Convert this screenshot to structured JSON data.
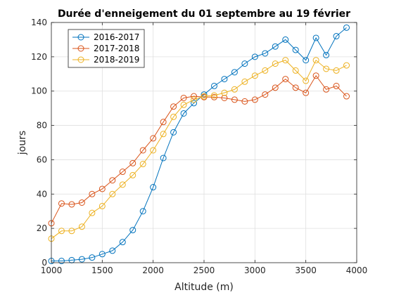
{
  "chart_data": {
    "type": "line",
    "title": "Durée d'enneigement du 01 septembre au 19 février",
    "xlabel": "Altitude (m)",
    "ylabel": "jours",
    "xlim": [
      1000,
      4000
    ],
    "ylim": [
      0,
      140
    ],
    "xticks": [
      1000,
      1500,
      2000,
      2500,
      3000,
      3500,
      4000
    ],
    "yticks": [
      0,
      20,
      40,
      60,
      80,
      100,
      120,
      140
    ],
    "grid": true,
    "legend_position": "top-left",
    "marker": "circle",
    "x": [
      1000,
      1100,
      1200,
      1300,
      1400,
      1500,
      1600,
      1700,
      1800,
      1900,
      2000,
      2100,
      2200,
      2300,
      2400,
      2500,
      2600,
      2700,
      2800,
      2900,
      3000,
      3100,
      3200,
      3300,
      3400,
      3500,
      3600,
      3700,
      3800,
      3900
    ],
    "series": [
      {
        "name": "2016-2017",
        "color": "#0072BD",
        "values": [
          1,
          1,
          1.5,
          2,
          3,
          5,
          7,
          12,
          19,
          30,
          44,
          61,
          76,
          87,
          93,
          98,
          103,
          107,
          111,
          116,
          120,
          122,
          126,
          130,
          124,
          118,
          131,
          121,
          132,
          137
        ]
      },
      {
        "name": "2017-2018",
        "color": "#D95319",
        "values": [
          23,
          34.5,
          34,
          35,
          40,
          43,
          48,
          53,
          58,
          65.5,
          72.5,
          82,
          91,
          96,
          97,
          96.5,
          96.5,
          96,
          95,
          94,
          95,
          98,
          102,
          107,
          102,
          99,
          109,
          101,
          103,
          97
        ]
      },
      {
        "name": "2018-2019",
        "color": "#EDB120",
        "values": [
          14,
          18.5,
          18.5,
          21,
          29,
          33,
          40,
          45.5,
          51,
          57.5,
          65.5,
          75,
          85,
          92,
          95,
          97,
          97.5,
          99,
          101,
          105.5,
          109,
          112,
          116,
          118,
          112,
          106,
          118,
          113,
          112,
          115
        ]
      }
    ]
  }
}
